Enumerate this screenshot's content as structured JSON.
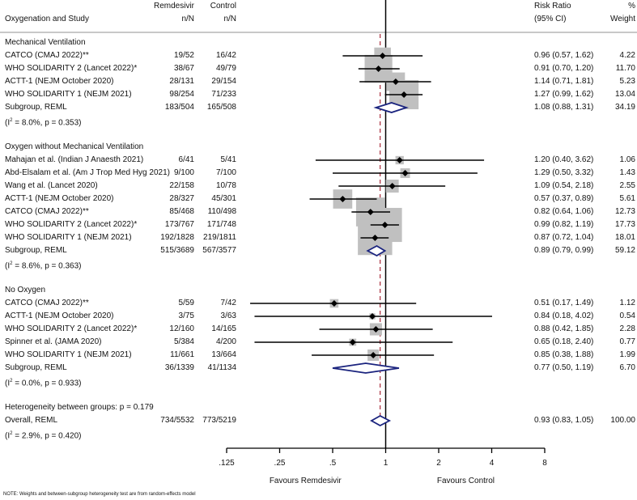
{
  "headers": {
    "study": "Oxygenation and Study",
    "remdesivir_top": "Remdesivir",
    "remdesivir_sub": "n/N",
    "control_top": "Control",
    "control_sub": "n/N",
    "rr_top": "Risk Ratio",
    "rr_sub": "(95% CI)",
    "weight_top": "%",
    "weight_sub": "Weight"
  },
  "colors": {
    "box": "#c0c0c0",
    "diamond": "#1a237e",
    "overall_line": "#b03a48",
    "line": "#000000"
  },
  "chart_data": {
    "type": "forest",
    "xscale": "log2",
    "xlim": [
      0.125,
      8
    ],
    "xticks": [
      ".125",
      ".25",
      ".5",
      "1",
      "2",
      "4",
      "8"
    ],
    "xtick_values": [
      0.125,
      0.25,
      0.5,
      1,
      2,
      4,
      8
    ],
    "xlabel_left": "Favours Remdesivir",
    "xlabel_right": "Favours Control",
    "null_value": 1,
    "groups": [
      {
        "name": "Mechanical Ventilation",
        "studies": [
          {
            "study": "CATCO (CMAJ 2022)**",
            "rem": "19/52",
            "ctl": "16/42",
            "rr": 0.96,
            "lo": 0.57,
            "hi": 1.62,
            "ci_text": "0.96 (0.57, 1.62)",
            "weight": "4.22"
          },
          {
            "study": "WHO SOLIDARITY 2 (Lancet 2022)*",
            "rem": "38/67",
            "ctl": "49/79",
            "rr": 0.91,
            "lo": 0.7,
            "hi": 1.2,
            "ci_text": "0.91 (0.70, 1.20)",
            "weight": "11.70"
          },
          {
            "study": "ACTT-1 (NEJM October 2020)",
            "rem": "28/131",
            "ctl": "29/154",
            "rr": 1.14,
            "lo": 0.71,
            "hi": 1.81,
            "ci_text": "1.14 (0.71, 1.81)",
            "weight": "5.23"
          },
          {
            "study": "WHO SOLIDARITY 1 (NEJM 2021)",
            "rem": "98/254",
            "ctl": "71/233",
            "rr": 1.27,
            "lo": 0.99,
            "hi": 1.62,
            "ci_text": "1.27 (0.99, 1.62)",
            "weight": "13.04"
          }
        ],
        "subgroup": {
          "label": "Subgroup, REML",
          "rem": "183/504",
          "ctl": "165/508",
          "rr": 1.08,
          "lo": 0.88,
          "hi": 1.31,
          "ci_text": "1.08 (0.88, 1.31)",
          "weight": "34.19"
        },
        "het_prefix": "(I",
        "het_sup": "2",
        "het_rest": " = 8.0%, p = 0.353)"
      },
      {
        "name": "Oxygen without Mechanical Ventilation",
        "studies": [
          {
            "study": "Mahajan et al. (Indian J Anaesth 2021)",
            "rem": "6/41",
            "ctl": "5/41",
            "rr": 1.2,
            "lo": 0.4,
            "hi": 3.62,
            "ci_text": "1.20 (0.40, 3.62)",
            "weight": "1.06"
          },
          {
            "study": "Abd-Elsalam et al. (Am J Trop Med Hyg 2021)",
            "rem": "9/100",
            "ctl": "7/100",
            "rr": 1.29,
            "lo": 0.5,
            "hi": 3.32,
            "ci_text": "1.29 (0.50, 3.32)",
            "weight": "1.43"
          },
          {
            "study": "Wang et al. (Lancet 2020)",
            "rem": "22/158",
            "ctl": "10/78",
            "rr": 1.09,
            "lo": 0.54,
            "hi": 2.18,
            "ci_text": "1.09 (0.54, 2.18)",
            "weight": "2.55"
          },
          {
            "study": "ACTT-1 (NEJM October 2020)",
            "rem": "28/327",
            "ctl": "45/301",
            "rr": 0.57,
            "lo": 0.37,
            "hi": 0.89,
            "ci_text": "0.57 (0.37, 0.89)",
            "weight": "5.61"
          },
          {
            "study": "CATCO (CMAJ 2022)**",
            "rem": "85/468",
            "ctl": "110/498",
            "rr": 0.82,
            "lo": 0.64,
            "hi": 1.06,
            "ci_text": "0.82 (0.64, 1.06)",
            "weight": "12.73"
          },
          {
            "study": "WHO SOLIDARITY 2 (Lancet 2022)*",
            "rem": "173/767",
            "ctl": "171/748",
            "rr": 0.99,
            "lo": 0.82,
            "hi": 1.19,
            "ci_text": "0.99 (0.82, 1.19)",
            "weight": "17.73"
          },
          {
            "study": "WHO SOLIDARITY 1 (NEJM 2021)",
            "rem": "192/1828",
            "ctl": "219/1811",
            "rr": 0.87,
            "lo": 0.72,
            "hi": 1.04,
            "ci_text": "0.87 (0.72, 1.04)",
            "weight": "18.01"
          }
        ],
        "subgroup": {
          "label": "Subgroup, REML",
          "rem": "515/3689",
          "ctl": "567/3577",
          "rr": 0.89,
          "lo": 0.79,
          "hi": 0.99,
          "ci_text": "0.89 (0.79, 0.99)",
          "weight": "59.12"
        },
        "het_prefix": "(I",
        "het_sup": "2",
        "het_rest": " = 8.6%, p = 0.363)"
      },
      {
        "name": "No Oxygen",
        "studies": [
          {
            "study": "CATCO (CMAJ 2022)**",
            "rem": "5/59",
            "ctl": "7/42",
            "rr": 0.51,
            "lo": 0.17,
            "hi": 1.49,
            "ci_text": "0.51 (0.17, 1.49)",
            "weight": "1.12"
          },
          {
            "study": "ACTT-1 (NEJM October 2020)",
            "rem": "3/75",
            "ctl": "3/63",
            "rr": 0.84,
            "lo": 0.18,
            "hi": 4.02,
            "ci_text": "0.84 (0.18, 4.02)",
            "weight": "0.54"
          },
          {
            "study": "WHO SOLIDARITY 2 (Lancet 2022)*",
            "rem": "12/160",
            "ctl": "14/165",
            "rr": 0.88,
            "lo": 0.42,
            "hi": 1.85,
            "ci_text": "0.88 (0.42, 1.85)",
            "weight": "2.28"
          },
          {
            "study": "Spinner et al. (JAMA 2020)",
            "rem": "5/384",
            "ctl": "4/200",
            "rr": 0.65,
            "lo": 0.18,
            "hi": 2.4,
            "ci_text": "0.65 (0.18, 2.40)",
            "weight": "0.77"
          },
          {
            "study": "WHO SOLIDARITY 1 (NEJM 2021)",
            "rem": "11/661",
            "ctl": "13/664",
            "rr": 0.85,
            "lo": 0.38,
            "hi": 1.88,
            "ci_text": "0.85 (0.38, 1.88)",
            "weight": "1.99"
          }
        ],
        "subgroup": {
          "label": "Subgroup, REML",
          "rem": "36/1339",
          "ctl": "41/1134",
          "rr": 0.77,
          "lo": 0.5,
          "hi": 1.19,
          "ci_text": "0.77 (0.50, 1.19)",
          "weight": "6.70"
        },
        "het_prefix": "(I",
        "het_sup": "2",
        "het_rest": " = 0.0%, p = 0.933)"
      }
    ],
    "between_groups": "Heterogeneity between groups: p = 0.179",
    "overall": {
      "label": "Overall, REML",
      "rem": "734/5532",
      "ctl": "773/5219",
      "rr": 0.93,
      "lo": 0.83,
      "hi": 1.05,
      "ci_text": "0.93 (0.83, 1.05)",
      "weight": "100.00",
      "het_prefix": "(I",
      "het_sup": "2",
      "het_rest": " = 2.9%, p = 0.420)"
    }
  },
  "note": "NOTE: Weights and between-subgroup heterogeneity test are from random-effects model"
}
